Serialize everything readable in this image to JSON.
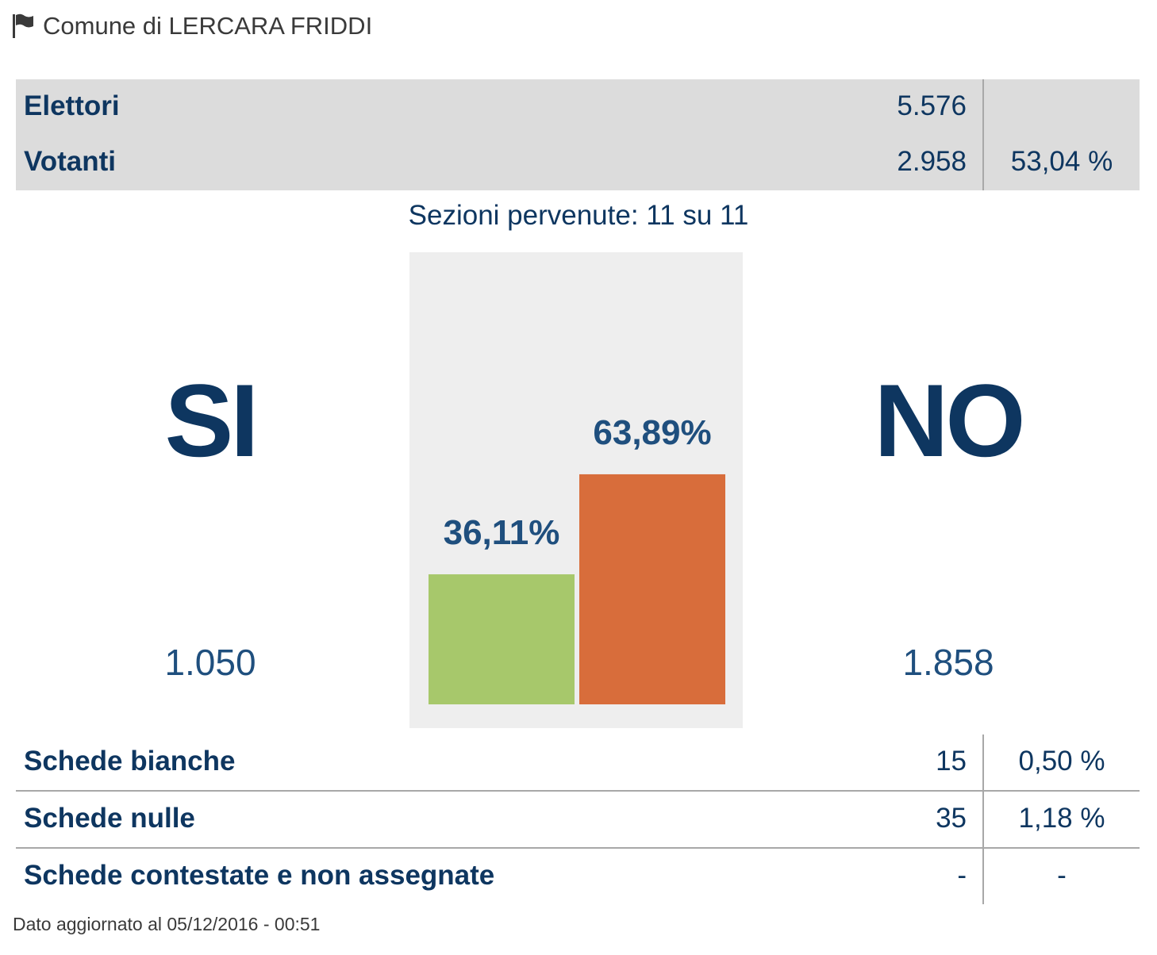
{
  "header": {
    "title": "Comune di LERCARA FRIDDI",
    "icon": "flag-icon"
  },
  "summary": {
    "elettori": {
      "label": "Elettori",
      "value": "5.576"
    },
    "votanti": {
      "label": "Votanti",
      "value": "2.958",
      "percent": "53,04 %"
    }
  },
  "sezioni": "Sezioni pervenute: 11 su 11",
  "results": {
    "si": {
      "label": "SI",
      "votes": "1.050"
    },
    "no": {
      "label": "NO",
      "votes": "1.858"
    }
  },
  "chart_data": {
    "type": "bar",
    "categories": [
      "SI",
      "NO"
    ],
    "values": [
      36.11,
      63.89
    ],
    "value_labels": [
      "36,11%",
      "63,89%"
    ],
    "colors": [
      "#a7c86b",
      "#d86d3b"
    ],
    "ylim": [
      0,
      100
    ]
  },
  "schede": [
    {
      "label": "Schede bianche",
      "value": "15",
      "percent": "0,50 %"
    },
    {
      "label": "Schede nulle",
      "value": "35",
      "percent": "1,18 %"
    },
    {
      "label": "Schede contestate e non assegnate",
      "value": "-",
      "percent": "-"
    }
  ],
  "footer": "Dato aggiornato al 05/12/2016 - 00:51"
}
